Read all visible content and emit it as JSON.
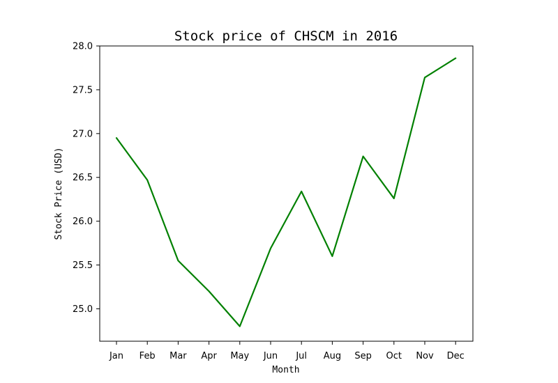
{
  "chart_data": {
    "type": "line",
    "title": "Stock price of CHSCM in 2016",
    "xlabel": "Month",
    "ylabel": "Stock Price (USD)",
    "categories": [
      "Jan",
      "Feb",
      "Mar",
      "Apr",
      "May",
      "Jun",
      "Jul",
      "Aug",
      "Sep",
      "Oct",
      "Nov",
      "Dec"
    ],
    "series": [
      {
        "values": [
          26.95,
          26.47,
          25.55,
          25.2,
          24.8,
          25.69,
          26.34,
          25.6,
          26.74,
          26.26,
          27.64,
          27.86
        ],
        "color": "#008000"
      }
    ],
    "yticks": [
      "25.0",
      "25.5",
      "26.0",
      "26.5",
      "27.0",
      "27.5",
      "28.0"
    ],
    "ylim": [
      24.63,
      28.0
    ],
    "grid": false,
    "legend": "none"
  }
}
